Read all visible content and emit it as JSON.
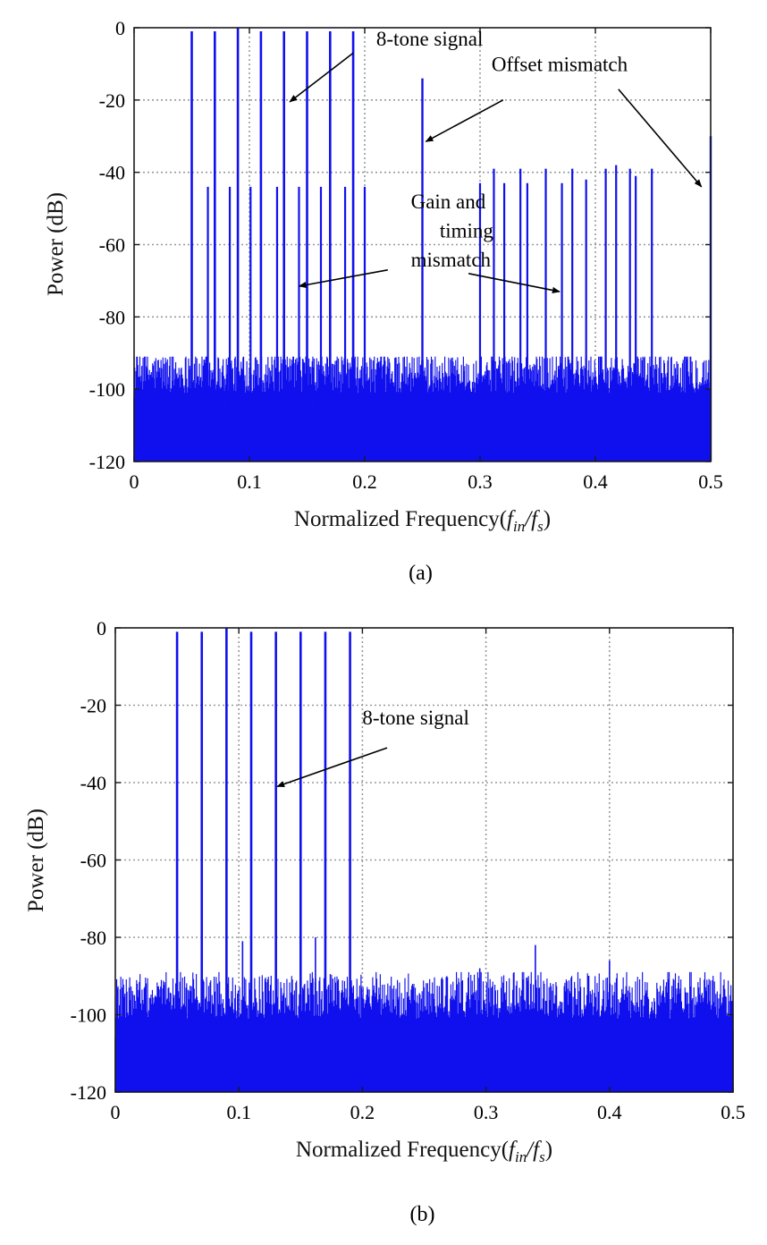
{
  "chart_data": [
    {
      "type": "line",
      "caption": "(a)",
      "ylabel": "Power (dB)",
      "xlabel": {
        "main": "Normalized Frequency(",
        "f1": "f",
        "sub1": "in",
        "slash": "/",
        "f2": "f",
        "sub2": "s",
        "close": ")"
      },
      "xlim": [
        0,
        0.5
      ],
      "ylim": [
        -120,
        0
      ],
      "xticks": [
        "0",
        "0.1",
        "0.2",
        "0.3",
        "0.4",
        "0.5"
      ],
      "yticks": [
        "0",
        "-20",
        "-40",
        "-60",
        "-80",
        "-100",
        "-120"
      ],
      "grid": true,
      "series_color": "#1010ee",
      "noise_floor": [
        -120,
        -92
      ],
      "signal_tones": {
        "x": [
          0.05,
          0.07,
          0.09,
          0.11,
          0.13,
          0.15,
          0.17,
          0.19
        ],
        "y": [
          -1,
          -1,
          0,
          -1,
          -1,
          -1,
          -1,
          -1
        ]
      },
      "offset_spurs": {
        "x": [
          0.25,
          0.5
        ],
        "y": [
          -14,
          -30
        ]
      },
      "mismatch_spurs": {
        "x": [
          0.064,
          0.083,
          0.101,
          0.124,
          0.143,
          0.162,
          0.183,
          0.2,
          0.3,
          0.312,
          0.321,
          0.335,
          0.341,
          0.357,
          0.371,
          0.38,
          0.392,
          0.409,
          0.418,
          0.43,
          0.435,
          0.449
        ],
        "y": [
          -44,
          -44,
          -44,
          -44,
          -44,
          -44,
          -44,
          -44,
          -43,
          -39,
          -43,
          -39,
          -43,
          -39,
          -43,
          -39,
          -42,
          -39,
          -38,
          -39,
          -41,
          -39
        ]
      },
      "annotations": [
        {
          "label": "8-tone signal",
          "text_at": [
            0.21,
            -5
          ],
          "arrow_from": [
            0.19,
            -7
          ],
          "arrow_to": [
            0.135,
            -20.5
          ]
        },
        {
          "label": "Offset mismatch",
          "text_at": [
            0.31,
            -12
          ],
          "arrow_from": [
            0.32,
            -20
          ],
          "arrow_to": [
            0.253,
            -31.5
          ]
        },
        {
          "label": "Offset mismatch",
          "text_at": [
            null,
            null
          ],
          "arrow_from": [
            0.42,
            -17
          ],
          "arrow_to": [
            0.492,
            -44
          ]
        },
        {
          "label": "Gain and",
          "text_at": [
            0.24,
            -50
          ]
        },
        {
          "label": "timing",
          "text_at": [
            0.265,
            -58
          ]
        },
        {
          "label": "mismatch",
          "text_at": [
            0.24,
            -66
          ]
        },
        {
          "label": "",
          "arrow_from": [
            0.22,
            -67
          ],
          "arrow_to": [
            0.143,
            -71.5
          ]
        },
        {
          "label": "",
          "arrow_from": [
            0.29,
            -68
          ],
          "arrow_to": [
            0.369,
            -73
          ]
        }
      ]
    },
    {
      "type": "line",
      "caption": "(b)",
      "ylabel": "Power (dB)",
      "xlabel": {
        "main": "Normalized Frequency(",
        "f1": "f",
        "sub1": "in",
        "slash": "/",
        "f2": "f",
        "sub2": "s",
        "close": ")"
      },
      "xlim": [
        0,
        0.5
      ],
      "ylim": [
        -120,
        0
      ],
      "xticks": [
        "0",
        "0.1",
        "0.2",
        "0.3",
        "0.4",
        "0.5"
      ],
      "yticks": [
        "0",
        "-20",
        "-40",
        "-60",
        "-80",
        "-100",
        "-120"
      ],
      "grid": true,
      "series_color": "#1010ee",
      "noise_floor": [
        -120,
        -90
      ],
      "signal_tones": {
        "x": [
          0.05,
          0.07,
          0.09,
          0.11,
          0.13,
          0.15,
          0.17,
          0.19
        ],
        "y": [
          -1,
          -1,
          0,
          -1,
          -1,
          -1,
          -1,
          -1
        ]
      },
      "small_spurs": {
        "x": [
          0.103,
          0.162,
          0.295,
          0.34,
          0.4
        ],
        "y": [
          -81,
          -80,
          -88,
          -82,
          -86
        ]
      },
      "annotations": [
        {
          "label": "8-tone signal",
          "text_at": [
            0.2,
            -25
          ]
        },
        {
          "label": "",
          "arrow_from": [
            0.22,
            -31
          ],
          "arrow_to": [
            0.131,
            -41
          ]
        }
      ]
    }
  ]
}
